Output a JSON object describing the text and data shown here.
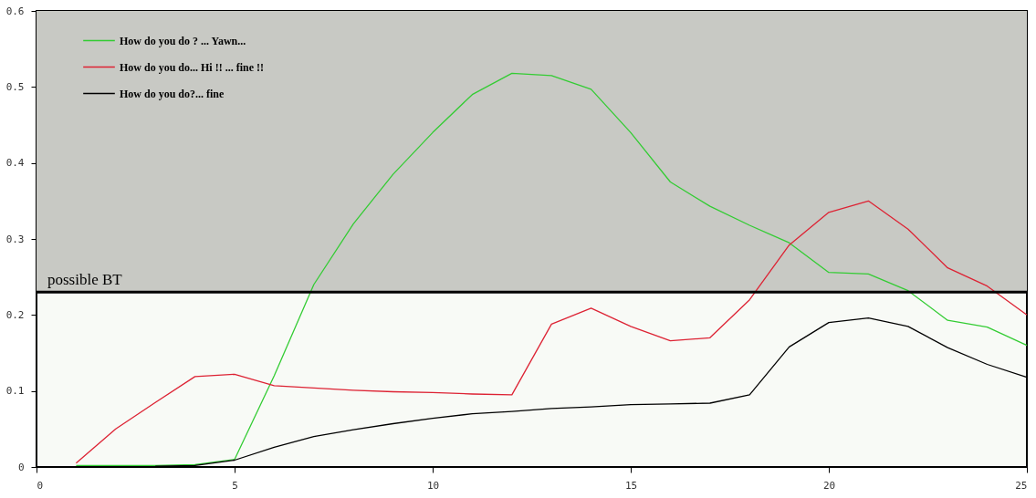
{
  "chart_data": {
    "type": "line",
    "x": [
      1,
      2,
      3,
      4,
      5,
      6,
      7,
      8,
      9,
      10,
      11,
      12,
      13,
      14,
      15,
      16,
      17,
      18,
      19,
      20,
      21,
      22,
      23,
      24,
      25
    ],
    "series": [
      {
        "name": "How do you do ? ... Yawn...",
        "color": "#33cc33",
        "values": [
          0.002,
          0.002,
          0.002,
          0.003,
          0.01,
          0.12,
          0.24,
          0.32,
          0.385,
          0.44,
          0.49,
          0.518,
          0.515,
          0.497,
          0.44,
          0.375,
          0.343,
          0.318,
          0.295,
          0.256,
          0.254,
          0.232,
          0.193,
          0.184,
          0.16
        ]
      },
      {
        "name": "How do you do... Hi !! ... fine !!",
        "color": "#dd2233",
        "values": [
          0.005,
          0.05,
          0.085,
          0.119,
          0.122,
          0.107,
          0.104,
          0.101,
          0.099,
          0.098,
          0.096,
          0.095,
          0.188,
          0.209,
          0.185,
          0.166,
          0.17,
          0.22,
          0.292,
          0.335,
          0.35,
          0.313,
          0.262,
          0.238,
          0.2
        ]
      },
      {
        "name": "How do you do?... fine",
        "color": "#000000",
        "values": [
          null,
          null,
          0.001,
          0.002,
          0.009,
          0.026,
          0.04,
          0.049,
          0.057,
          0.064,
          0.07,
          0.073,
          0.077,
          0.079,
          0.082,
          0.083,
          0.084,
          0.095,
          0.158,
          0.19,
          0.196,
          0.185,
          0.157,
          0.135,
          0.118
        ]
      }
    ],
    "xlim": [
      0,
      25
    ],
    "xticks": [
      0,
      5,
      10,
      15,
      20,
      25
    ],
    "ylim": [
      0,
      0.6
    ],
    "yticks": [
      0,
      0.1,
      0.2,
      0.3,
      0.4,
      0.5,
      0.6
    ],
    "ref_lines": [
      {
        "axis": "y",
        "value": 0.23,
        "label": "possible BT",
        "color": "#000000"
      }
    ],
    "bands": [
      {
        "axis": "y",
        "from": 0.23,
        "to": 0.6,
        "color": "#c8c9c4"
      }
    ],
    "grid": false,
    "legend": "top left"
  }
}
